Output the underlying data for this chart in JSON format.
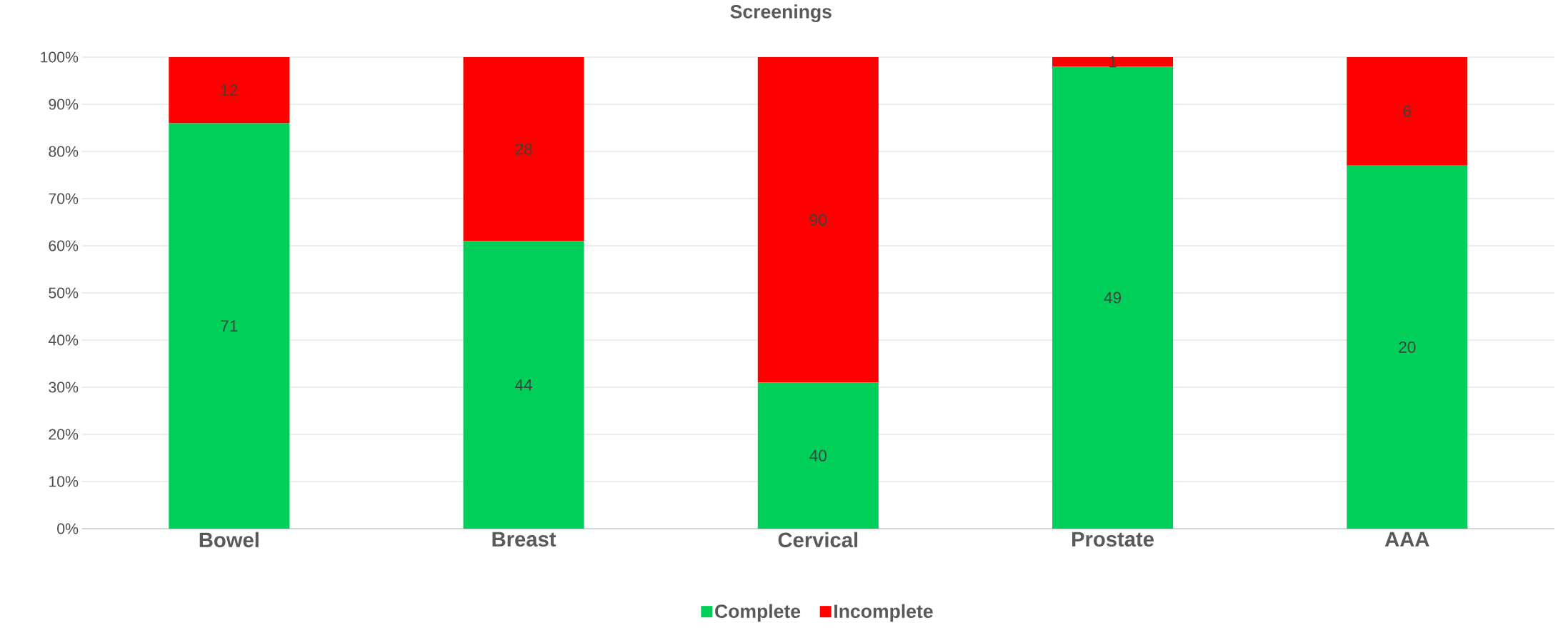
{
  "chart_data": {
    "type": "bar",
    "title": "Screenings",
    "stacked": true,
    "categories": [
      "Bowel",
      "Breast",
      "Cervical",
      "Prostate",
      "AAA"
    ],
    "series": [
      {
        "name": "Complete",
        "color": "#00d05a",
        "values": [
          86,
          61,
          31,
          98,
          77
        ]
      },
      {
        "name": "Incomplete",
        "color": "#ff0000",
        "values": [
          14,
          39,
          69,
          2,
          23
        ]
      }
    ],
    "annotations": [
      "71",
      "44",
      "40",
      "49",
      "20",
      "12",
      "28",
      "90",
      "1",
      "6"
    ],
    "ylim": [
      0,
      100
    ],
    "yticks": [
      {
        "value": 0,
        "label": "0%"
      },
      {
        "value": 10,
        "label": "10%"
      },
      {
        "value": 20,
        "label": "20%"
      },
      {
        "value": 30,
        "label": "30%"
      },
      {
        "value": 40,
        "label": "40%"
      },
      {
        "value": 50,
        "label": "50%"
      },
      {
        "value": 60,
        "label": "60%"
      },
      {
        "value": 70,
        "label": "70%"
      },
      {
        "value": 80,
        "label": "80%"
      },
      {
        "value": 90,
        "label": "90%"
      },
      {
        "value": 100,
        "label": "100%"
      }
    ],
    "grid": "y",
    "legend": "bottom"
  }
}
